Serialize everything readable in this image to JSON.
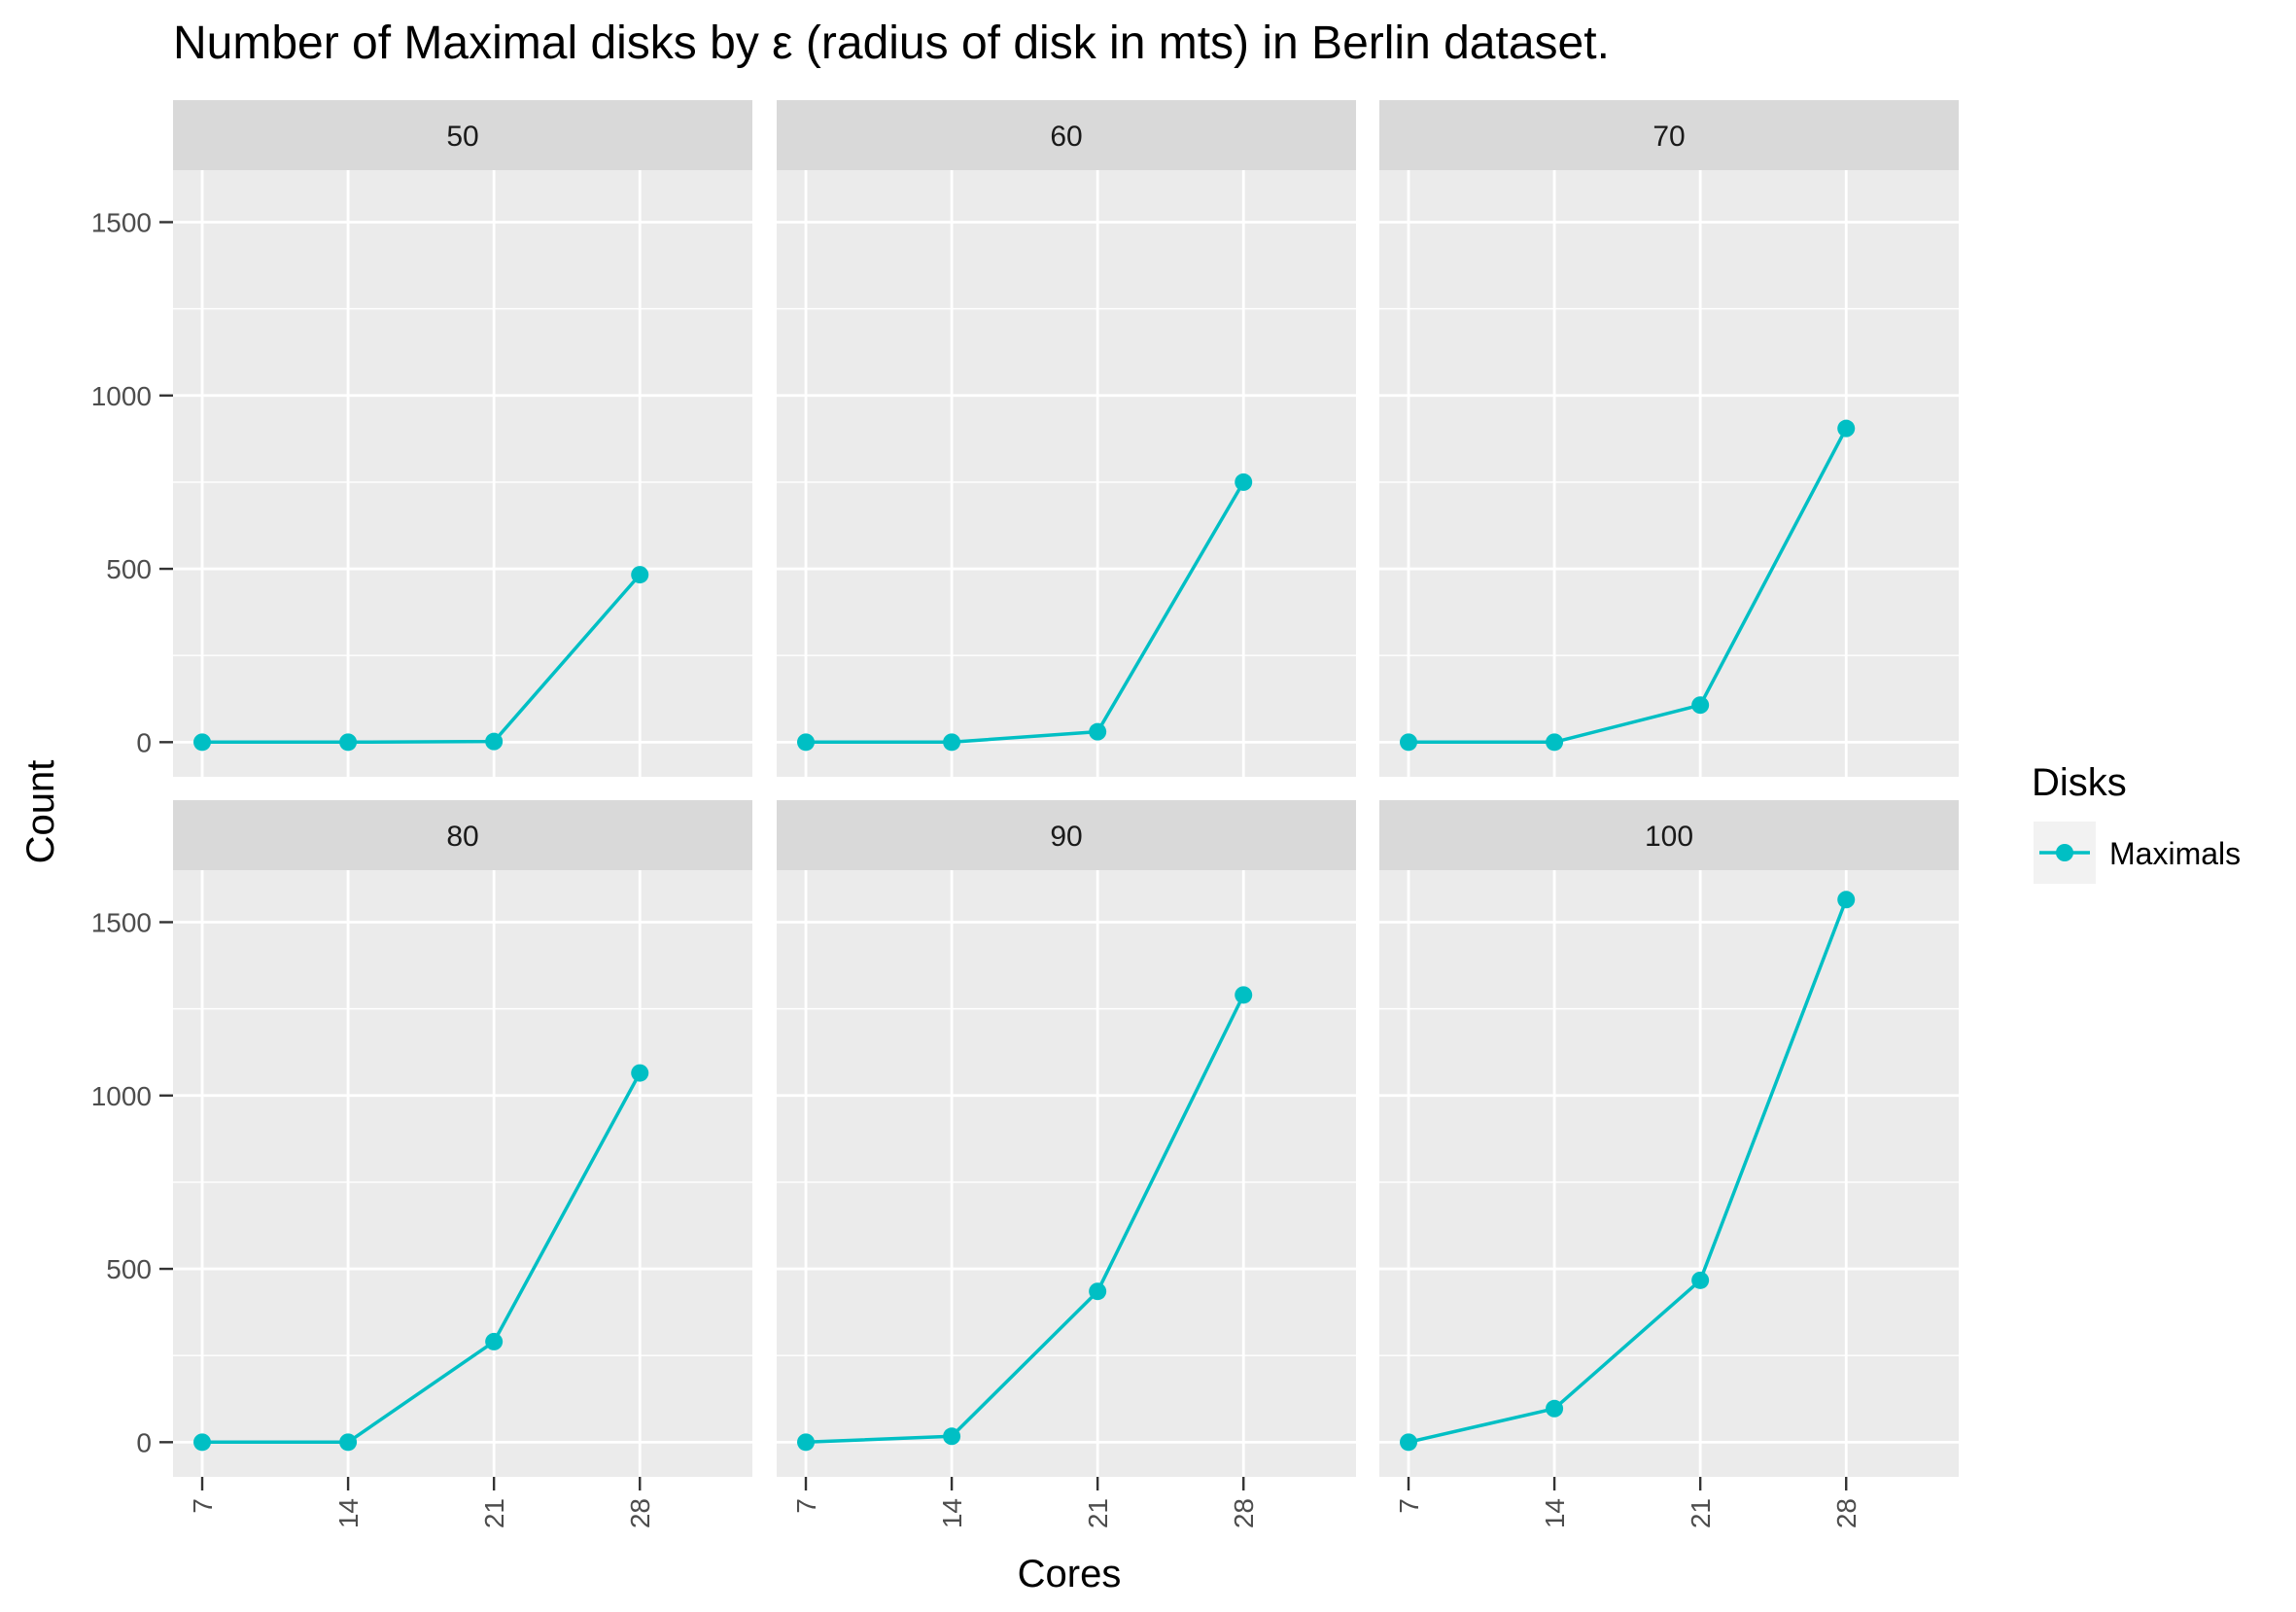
{
  "chart_data": {
    "type": "line",
    "title": "Number of Maximal disks by ε (radius of disk in mts) in Berlin dataset.",
    "xlabel": "Cores",
    "ylabel": "Count",
    "x_ticks": [
      7,
      14,
      21,
      28
    ],
    "y_ticks": [
      0,
      500,
      1000,
      1500
    ],
    "ylim": [
      -100,
      1650
    ],
    "xlim": [
      5.6,
      33.4
    ],
    "grid": true,
    "legend": {
      "title": "Disks",
      "position": "right",
      "entries": [
        "Maximals"
      ]
    },
    "series_color": "#00BFC4",
    "panel_background": "#EBEBEB",
    "strip_background": "#D9D9D9",
    "facets": [
      {
        "label": "50",
        "series": [
          {
            "name": "Maximals",
            "x": [
              7,
              14,
              21,
              28
            ],
            "values": [
              0,
              0,
              2,
              483
            ]
          }
        ]
      },
      {
        "label": "60",
        "series": [
          {
            "name": "Maximals",
            "x": [
              7,
              14,
              21,
              28
            ],
            "values": [
              0,
              0,
              30,
              750
            ]
          }
        ]
      },
      {
        "label": "70",
        "series": [
          {
            "name": "Maximals",
            "x": [
              7,
              14,
              21,
              28
            ],
            "values": [
              0,
              0,
              107,
              905
            ]
          }
        ]
      },
      {
        "label": "80",
        "series": [
          {
            "name": "Maximals",
            "x": [
              7,
              14,
              21,
              28
            ],
            "values": [
              0,
              0,
              290,
              1065
            ]
          }
        ]
      },
      {
        "label": "90",
        "series": [
          {
            "name": "Maximals",
            "x": [
              7,
              14,
              21,
              28
            ],
            "values": [
              0,
              17,
              435,
              1290
            ]
          }
        ]
      },
      {
        "label": "100",
        "series": [
          {
            "name": "Maximals",
            "x": [
              7,
              14,
              21,
              28
            ],
            "values": [
              0,
              97,
              467,
              1565
            ]
          }
        ]
      }
    ]
  }
}
